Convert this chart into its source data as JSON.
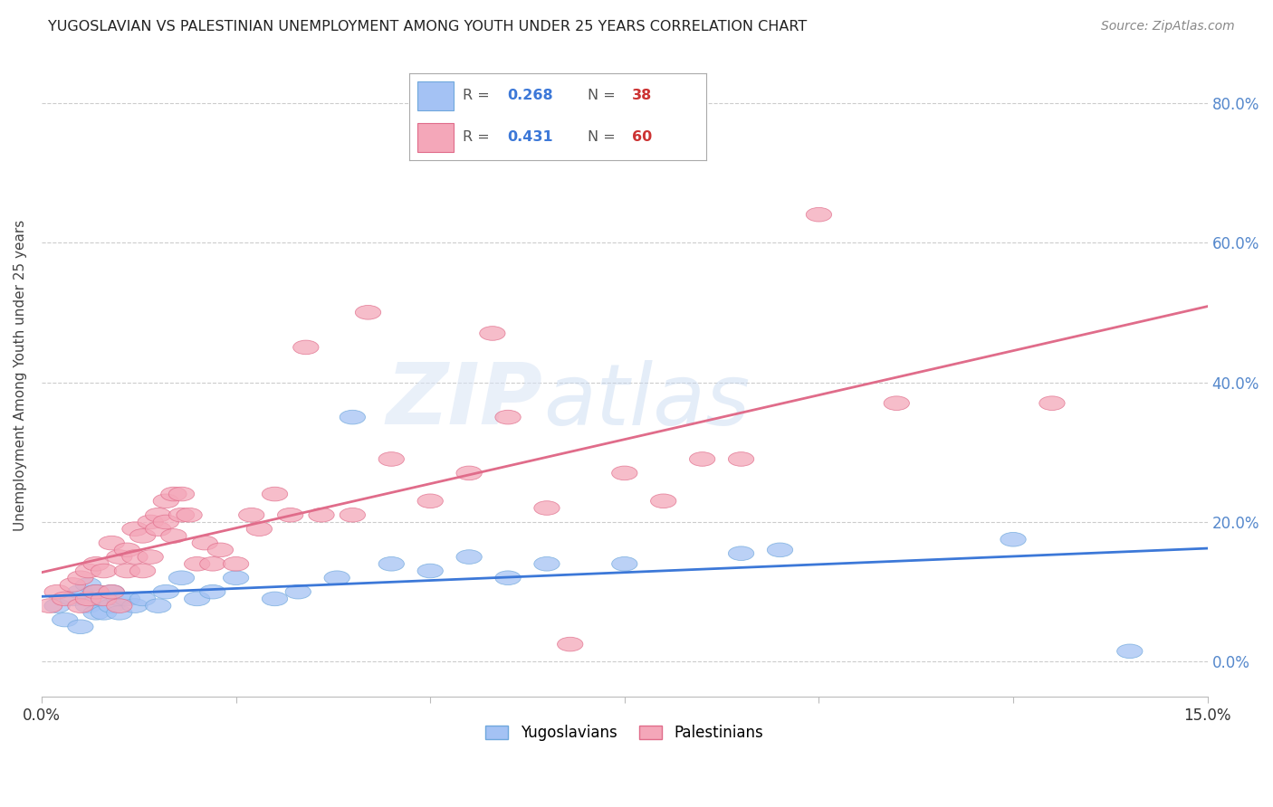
{
  "title": "YUGOSLAVIAN VS PALESTINIAN UNEMPLOYMENT AMONG YOUTH UNDER 25 YEARS CORRELATION CHART",
  "source": "Source: ZipAtlas.com",
  "ylabel": "Unemployment Among Youth under 25 years",
  "xlim": [
    0.0,
    0.15
  ],
  "ylim": [
    -0.05,
    0.87
  ],
  "xticks": [
    0.0,
    0.025,
    0.05,
    0.075,
    0.1,
    0.125,
    0.15
  ],
  "xtick_labels": [
    "0.0%",
    "",
    "",
    "",
    "",
    "",
    "15.0%"
  ],
  "yticks_right": [
    0.0,
    0.2,
    0.4,
    0.6,
    0.8
  ],
  "ytick_labels_right": [
    "0.0%",
    "20.0%",
    "40.0%",
    "60.0%",
    "80.0%"
  ],
  "yug_color": "#a4c2f4",
  "yug_edge_color": "#6fa8dc",
  "pal_color": "#f4a7b9",
  "pal_edge_color": "#e06c8a",
  "yug_line_color": "#3c78d8",
  "pal_line_color": "#e06c8a",
  "grid_color": "#cccccc",
  "yug_scatter_x": [
    0.002,
    0.003,
    0.004,
    0.005,
    0.005,
    0.006,
    0.006,
    0.007,
    0.007,
    0.008,
    0.008,
    0.009,
    0.009,
    0.01,
    0.01,
    0.011,
    0.012,
    0.013,
    0.015,
    0.016,
    0.018,
    0.02,
    0.022,
    0.025,
    0.03,
    0.033,
    0.038,
    0.04,
    0.045,
    0.05,
    0.055,
    0.06,
    0.065,
    0.075,
    0.09,
    0.095,
    0.125,
    0.14
  ],
  "yug_scatter_y": [
    0.08,
    0.06,
    0.09,
    0.05,
    0.1,
    0.08,
    0.11,
    0.07,
    0.1,
    0.07,
    0.09,
    0.08,
    0.1,
    0.07,
    0.09,
    0.09,
    0.08,
    0.09,
    0.08,
    0.1,
    0.12,
    0.09,
    0.1,
    0.12,
    0.09,
    0.1,
    0.12,
    0.35,
    0.14,
    0.13,
    0.15,
    0.12,
    0.14,
    0.14,
    0.155,
    0.16,
    0.175,
    0.015
  ],
  "pal_scatter_x": [
    0.001,
    0.002,
    0.003,
    0.004,
    0.005,
    0.005,
    0.006,
    0.006,
    0.007,
    0.007,
    0.008,
    0.008,
    0.009,
    0.009,
    0.01,
    0.01,
    0.011,
    0.011,
    0.012,
    0.012,
    0.013,
    0.013,
    0.014,
    0.014,
    0.015,
    0.015,
    0.016,
    0.016,
    0.017,
    0.017,
    0.018,
    0.018,
    0.019,
    0.02,
    0.021,
    0.022,
    0.023,
    0.025,
    0.027,
    0.028,
    0.03,
    0.032,
    0.034,
    0.036,
    0.04,
    0.042,
    0.045,
    0.05,
    0.055,
    0.058,
    0.06,
    0.065,
    0.068,
    0.075,
    0.08,
    0.085,
    0.09,
    0.1,
    0.11,
    0.13
  ],
  "pal_scatter_y": [
    0.08,
    0.1,
    0.09,
    0.11,
    0.08,
    0.12,
    0.09,
    0.13,
    0.1,
    0.14,
    0.09,
    0.13,
    0.1,
    0.17,
    0.15,
    0.08,
    0.16,
    0.13,
    0.19,
    0.15,
    0.18,
    0.13,
    0.2,
    0.15,
    0.19,
    0.21,
    0.2,
    0.23,
    0.18,
    0.24,
    0.21,
    0.24,
    0.21,
    0.14,
    0.17,
    0.14,
    0.16,
    0.14,
    0.21,
    0.19,
    0.24,
    0.21,
    0.45,
    0.21,
    0.21,
    0.5,
    0.29,
    0.23,
    0.27,
    0.47,
    0.35,
    0.22,
    0.025,
    0.27,
    0.23,
    0.29,
    0.29,
    0.64,
    0.37,
    0.37
  ]
}
